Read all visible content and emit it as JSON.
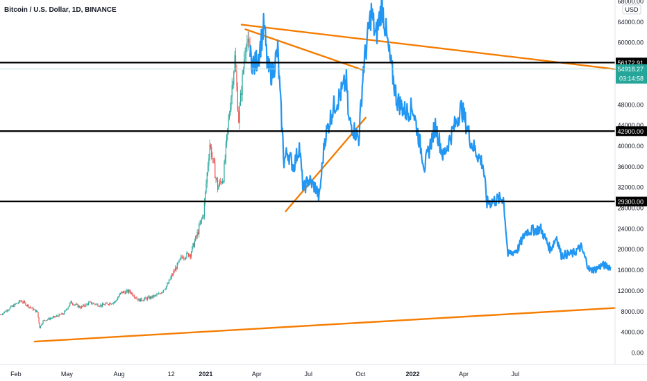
{
  "chart_data": {
    "type": "line",
    "title": "Bitcoin / U.S. Dollar, 1D, BINANCE",
    "currency": "USD",
    "ylim": [
      -1000,
      68000
    ],
    "y_ticks": [
      "0.00",
      "4000.00",
      "8000.00",
      "12000.00",
      "16000.00",
      "20000.00",
      "24000.00",
      "28000.00",
      "32000.00",
      "36000.00",
      "40000.00",
      "44000.00",
      "48000.00",
      "52000.00",
      "56000.00",
      "60000.00",
      "64000.00",
      "68000.00"
    ],
    "y_tick_values": [
      0,
      4000,
      8000,
      12000,
      16000,
      20000,
      24000,
      28000,
      32000,
      36000,
      40000,
      44000,
      48000,
      52000,
      56000,
      60000,
      64000,
      68000
    ],
    "x_ticks": [
      {
        "label": "Feb",
        "date": "2020-02-01",
        "bold": false
      },
      {
        "label": "May",
        "date": "2020-05-01",
        "bold": false
      },
      {
        "label": "Aug",
        "date": "2020-08-01",
        "bold": false
      },
      {
        "label": "12",
        "date": "2020-11-01",
        "bold": false
      },
      {
        "label": "2021",
        "date": "2021-01-01",
        "bold": true
      },
      {
        "label": "Apr",
        "date": "2021-04-01",
        "bold": false
      },
      {
        "label": "Jul",
        "date": "2021-07-01",
        "bold": false
      },
      {
        "label": "Oct",
        "date": "2021-10-01",
        "bold": false
      },
      {
        "label": "2022",
        "date": "2022-01-01",
        "bold": true
      },
      {
        "label": "Apr",
        "date": "2022-04-01",
        "bold": false
      },
      {
        "label": "Jul",
        "date": "2022-07-01",
        "bold": false
      }
    ],
    "x_range": [
      "2020-01-04",
      "2022-12-24"
    ],
    "series": [
      {
        "style": "candles",
        "up_color": "#26a69a",
        "down_color": "#ef5350",
        "points": [
          {
            "date": "2020-01-05",
            "close": 7400
          },
          {
            "date": "2020-01-20",
            "close": 8600
          },
          {
            "date": "2020-02-10",
            "close": 10100
          },
          {
            "date": "2020-02-28",
            "close": 8700
          },
          {
            "date": "2020-03-10",
            "close": 7900
          },
          {
            "date": "2020-03-14",
            "close": 4900
          },
          {
            "date": "2020-03-20",
            "close": 6200
          },
          {
            "date": "2020-04-05",
            "close": 6800
          },
          {
            "date": "2020-04-25",
            "close": 7600
          },
          {
            "date": "2020-05-08",
            "close": 9800
          },
          {
            "date": "2020-05-25",
            "close": 8800
          },
          {
            "date": "2020-06-10",
            "close": 9700
          },
          {
            "date": "2020-07-01",
            "close": 9200
          },
          {
            "date": "2020-07-25",
            "close": 9900
          },
          {
            "date": "2020-08-05",
            "close": 11700
          },
          {
            "date": "2020-08-20",
            "close": 11900
          },
          {
            "date": "2020-09-05",
            "close": 10200
          },
          {
            "date": "2020-09-25",
            "close": 10700
          },
          {
            "date": "2020-10-10",
            "close": 11300
          },
          {
            "date": "2020-10-25",
            "close": 13100
          },
          {
            "date": "2020-11-05",
            "close": 15600
          },
          {
            "date": "2020-11-20",
            "close": 18600
          },
          {
            "date": "2020-12-05",
            "close": 19200
          },
          {
            "date": "2020-12-17",
            "close": 23000
          },
          {
            "date": "2020-12-28",
            "close": 27000
          },
          {
            "date": "2021-01-08",
            "close": 40500
          },
          {
            "date": "2021-01-22",
            "close": 32000
          },
          {
            "date": "2021-02-01",
            "close": 34000
          },
          {
            "date": "2021-02-10",
            "close": 44800
          },
          {
            "date": "2021-02-21",
            "close": 57000
          },
          {
            "date": "2021-02-28",
            "close": 45200
          },
          {
            "date": "2021-03-13",
            "close": 61000
          },
          {
            "date": "2021-03-20",
            "close": 57500
          }
        ]
      },
      {
        "style": "line",
        "color": "#2196f3",
        "points": [
          {
            "date": "2021-03-20",
            "close": 57500
          },
          {
            "date": "2021-03-28",
            "close": 55500
          },
          {
            "date": "2021-04-05",
            "close": 58000
          },
          {
            "date": "2021-04-14",
            "close": 63500
          },
          {
            "date": "2021-04-20",
            "close": 55000
          },
          {
            "date": "2021-04-28",
            "close": 54000
          },
          {
            "date": "2021-05-08",
            "close": 58500
          },
          {
            "date": "2021-05-12",
            "close": 50000
          },
          {
            "date": "2021-05-19",
            "close": 37000
          },
          {
            "date": "2021-05-25",
            "close": 39000
          },
          {
            "date": "2021-06-05",
            "close": 36000
          },
          {
            "date": "2021-06-15",
            "close": 40000
          },
          {
            "date": "2021-06-22",
            "close": 31500
          },
          {
            "date": "2021-07-01",
            "close": 33500
          },
          {
            "date": "2021-07-15",
            "close": 31800
          },
          {
            "date": "2021-07-20",
            "close": 29800
          },
          {
            "date": "2021-07-30",
            "close": 41500
          },
          {
            "date": "2021-08-14",
            "close": 47500
          },
          {
            "date": "2021-08-22",
            "close": 49000
          },
          {
            "date": "2021-09-06",
            "close": 52500
          },
          {
            "date": "2021-09-10",
            "close": 45000
          },
          {
            "date": "2021-09-28",
            "close": 41500
          },
          {
            "date": "2021-10-06",
            "close": 55000
          },
          {
            "date": "2021-10-20",
            "close": 66000
          },
          {
            "date": "2021-10-28",
            "close": 61000
          },
          {
            "date": "2021-11-08",
            "close": 67500
          },
          {
            "date": "2021-11-20",
            "close": 58000
          },
          {
            "date": "2021-12-04",
            "close": 49000
          },
          {
            "date": "2021-12-20",
            "close": 46500
          },
          {
            "date": "2022-01-01",
            "close": 47500
          },
          {
            "date": "2022-01-22",
            "close": 36000
          },
          {
            "date": "2022-02-10",
            "close": 44000
          },
          {
            "date": "2022-02-24",
            "close": 38000
          },
          {
            "date": "2022-03-28",
            "close": 47500
          },
          {
            "date": "2022-04-15",
            "close": 40500
          },
          {
            "date": "2022-05-05",
            "close": 36500
          },
          {
            "date": "2022-05-12",
            "close": 29000
          },
          {
            "date": "2022-06-10",
            "close": 30000
          },
          {
            "date": "2022-06-18",
            "close": 19000
          },
          {
            "date": "2022-07-05",
            "close": 20000
          },
          {
            "date": "2022-07-20",
            "close": 23500
          },
          {
            "date": "2022-08-15",
            "close": 24000
          },
          {
            "date": "2022-09-01",
            "close": 20000
          },
          {
            "date": "2022-09-12",
            "close": 22500
          },
          {
            "date": "2022-09-20",
            "close": 18900
          },
          {
            "date": "2022-10-10",
            "close": 19200
          },
          {
            "date": "2022-10-25",
            "close": 20500
          },
          {
            "date": "2022-11-09",
            "close": 16000
          },
          {
            "date": "2022-11-20",
            "close": 16200
          },
          {
            "date": "2022-12-01",
            "close": 17000
          },
          {
            "date": "2022-12-16",
            "close": 16700
          }
        ]
      }
    ],
    "horizontal_lines": [
      {
        "value": 56172.91,
        "label": "56172.91",
        "color": "#000000"
      },
      {
        "value": 42900,
        "label": "42900.00",
        "color": "#000000"
      },
      {
        "value": 29300,
        "label": "29300.00",
        "color": "#000000"
      }
    ],
    "current_price": {
      "value": 54918.27,
      "label": "54918.27",
      "countdown": "03:14:58",
      "color": "#26a69a"
    },
    "trendlines": [
      {
        "from": {
          "date": "2021-03-05",
          "value": 63500
        },
        "to": {
          "date": "2022-12-24",
          "value": 54900
        },
        "color": "#f57c00"
      },
      {
        "from": {
          "date": "2021-03-12",
          "value": 62600
        },
        "to": {
          "date": "2021-10-06",
          "value": 54700
        },
        "color": "#f57c00"
      },
      {
        "from": {
          "date": "2021-05-22",
          "value": 27400
        },
        "to": {
          "date": "2021-10-10",
          "value": 45500
        },
        "color": "#f57c00"
      },
      {
        "from": {
          "date": "2020-03-05",
          "value": 2200
        },
        "to": {
          "date": "2022-12-24",
          "value": 8700
        },
        "color": "#f57c00"
      }
    ],
    "grid": false,
    "legend": "none"
  }
}
